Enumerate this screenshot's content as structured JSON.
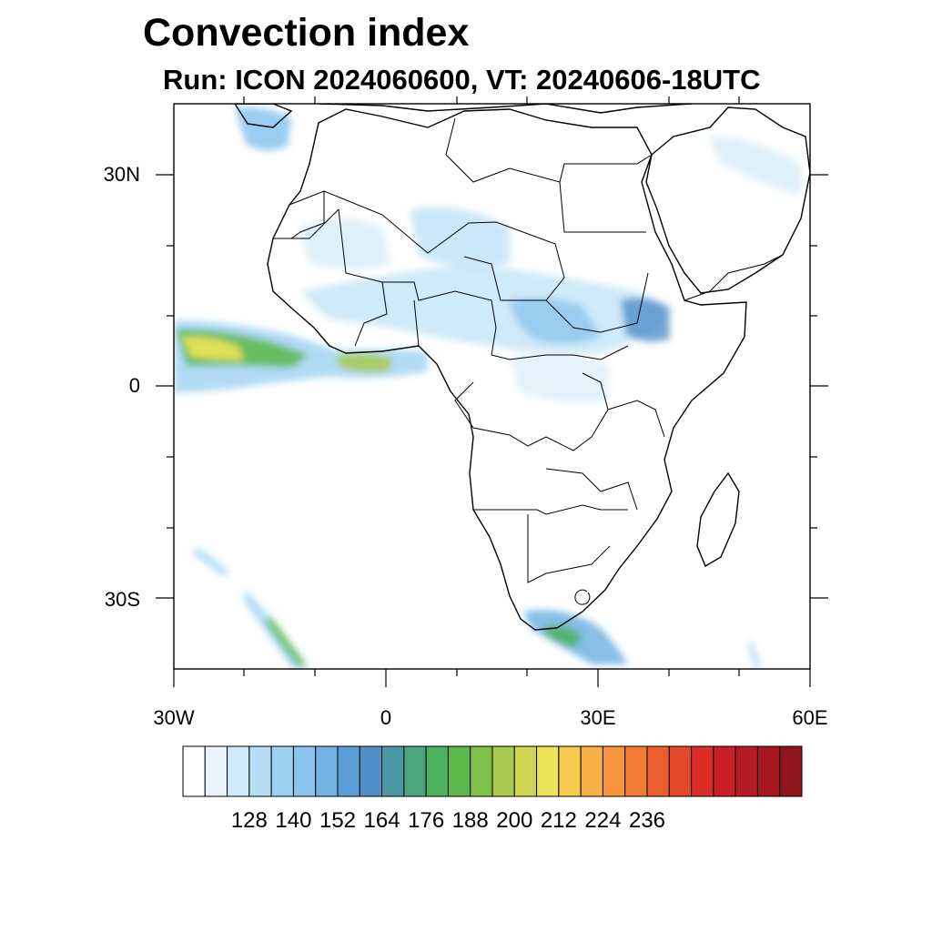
{
  "title": "Convection index",
  "subtitle": "Run: ICON 2024060600,  VT: 20240606-18UTC",
  "map": {
    "region": "Africa",
    "lon_range": [
      -30,
      60
    ],
    "lat_range": [
      -40,
      40
    ],
    "lat_labels": [
      {
        "lat": 30,
        "text": "30N"
      },
      {
        "lat": 0,
        "text": "0"
      },
      {
        "lat": -30,
        "text": "30S"
      }
    ],
    "lon_labels": [
      {
        "lon": -30,
        "text": "30W"
      },
      {
        "lon": 0,
        "text": "0"
      },
      {
        "lon": 30,
        "text": "30E"
      },
      {
        "lon": 60,
        "text": "60E"
      }
    ],
    "field": "convection index"
  },
  "colorbar": {
    "labels": [
      "128",
      "140",
      "152",
      "164",
      "176",
      "188",
      "200",
      "212",
      "224",
      "236"
    ],
    "colors": [
      "#ffffff",
      "#e8f4fb",
      "#d0eaf8",
      "#b5def5",
      "#9ed2f3",
      "#88c4ec",
      "#72b3e3",
      "#5c9fd6",
      "#4f8fc8",
      "#4a98a4",
      "#4ba67f",
      "#4cb25e",
      "#5ab948",
      "#7dc04a",
      "#a7ca4e",
      "#cfd653",
      "#eee45a",
      "#f6cb50",
      "#f7b147",
      "#f6963d",
      "#f27a35",
      "#ec5e2d",
      "#e34828",
      "#d92d26",
      "#c81f24",
      "#b71b22",
      "#a5171f",
      "#8f141b"
    ]
  }
}
